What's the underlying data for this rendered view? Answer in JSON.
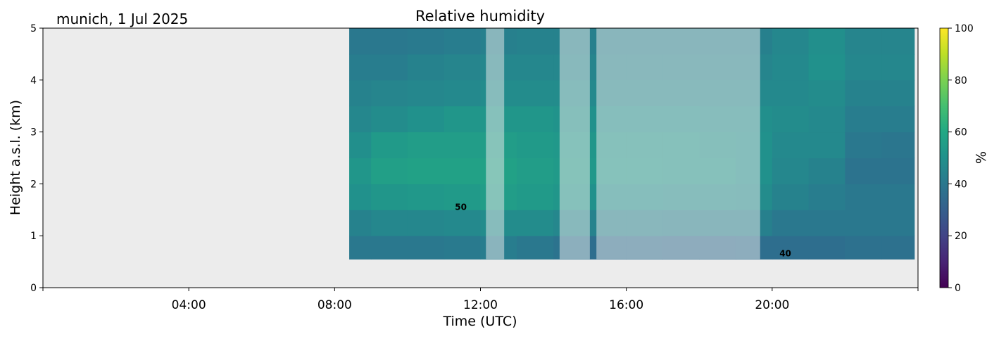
{
  "chart_data": {
    "type": "heatmap",
    "title": "Relative humidity",
    "subtitle": "munich, 1 Jul 2025",
    "xlabel": "Time (UTC)",
    "ylabel": "Height a.s.l. (km)",
    "xlim_hours": [
      0,
      24
    ],
    "ylim": [
      0,
      5
    ],
    "x_ticks": [
      {
        "hour": 0,
        "label": ""
      },
      {
        "hour": 4,
        "label": "04:00"
      },
      {
        "hour": 8,
        "label": "08:00"
      },
      {
        "hour": 12,
        "label": "12:00"
      },
      {
        "hour": 16,
        "label": "16:00"
      },
      {
        "hour": 20,
        "label": "20:00"
      },
      {
        "hour": 24,
        "label": ""
      }
    ],
    "y_ticks": [
      "0",
      "1",
      "2",
      "3",
      "4",
      "5"
    ],
    "colorbar": {
      "label": "%",
      "range": [
        0,
        100
      ],
      "ticks": [
        "0",
        "20",
        "40",
        "60",
        "80",
        "100"
      ],
      "colormap": "viridis"
    },
    "background_color": "#ececec",
    "data_time_range_hours": [
      8.4,
      23.9
    ],
    "data_height_range_km": [
      0.55,
      5.0
    ],
    "times_hours": [
      8.5,
      9.5,
      10.5,
      11.5,
      12.5,
      13.5,
      14.5,
      15.5,
      16.5,
      17.5,
      18.5,
      19.5,
      20.5,
      21.5,
      22.5,
      23.5
    ],
    "height_edges_km": [
      0.55,
      1.0,
      1.5,
      2.0,
      2.5,
      3.0,
      3.5,
      4.0,
      4.5,
      5.0
    ],
    "values": [
      [
        40,
        44,
        50,
        52,
        49,
        46,
        44,
        42,
        40
      ],
      [
        40,
        46,
        52,
        56,
        54,
        48,
        45,
        42,
        40
      ],
      [
        40,
        46,
        53,
        57,
        55,
        50,
        46,
        44,
        41
      ],
      [
        41,
        47,
        54,
        57,
        55,
        52,
        47,
        45,
        42
      ],
      [
        42,
        48,
        55,
        57,
        55,
        52,
        48,
        46,
        43
      ],
      [
        40,
        48,
        54,
        55,
        54,
        52,
        48,
        46,
        44
      ],
      [
        38,
        46,
        52,
        54,
        53,
        51,
        48,
        46,
        44
      ],
      [
        36,
        44,
        50,
        53,
        52,
        50,
        47,
        45,
        43
      ],
      [
        36,
        44,
        50,
        53,
        52,
        50,
        47,
        45,
        43
      ],
      [
        35,
        43,
        49,
        52,
        52,
        50,
        47,
        45,
        43
      ],
      [
        35,
        43,
        49,
        52,
        51,
        49,
        47,
        45,
        43
      ],
      [
        36,
        43,
        48,
        50,
        50,
        49,
        47,
        45,
        43
      ],
      [
        36,
        40,
        44,
        46,
        47,
        48,
        47,
        47,
        46
      ],
      [
        36,
        40,
        42,
        44,
        47,
        47,
        48,
        50,
        49
      ],
      [
        37,
        40,
        40,
        38,
        40,
        42,
        44,
        46,
        45
      ],
      [
        37,
        40,
        40,
        38,
        39,
        42,
        44,
        46,
        45
      ]
    ],
    "masked_intervals_hours": [
      [
        12.15,
        12.65
      ],
      [
        14.17,
        15.0
      ],
      [
        15.18,
        19.67
      ]
    ],
    "contour_labels": [
      {
        "text": "50",
        "hour": 11.3,
        "km": 1.5
      },
      {
        "text": "40",
        "hour": 20.2,
        "km": 0.6
      }
    ]
  }
}
